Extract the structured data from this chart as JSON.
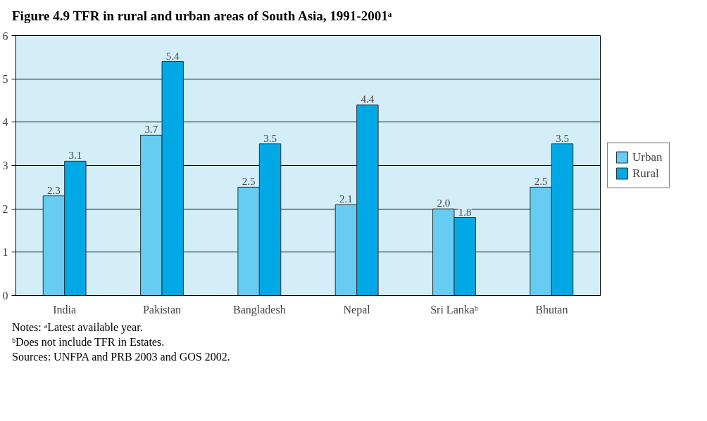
{
  "chart_data": {
    "type": "bar",
    "title": "Figure 4.9    TFR in rural and urban areas of South Asia, 1991-2001ᵃ",
    "categories": [
      "India",
      "Pakistan",
      "Bangladesh",
      "Nepal",
      "Sri Lankaᵇ",
      "Bhutan"
    ],
    "series": [
      {
        "name": "Urban",
        "color": "#66ccf2",
        "values": [
          2.3,
          3.7,
          2.5,
          2.1,
          2.0,
          2.5
        ],
        "value_labels": [
          "2.3",
          "3.7",
          "2.5",
          "2.1",
          "2.0",
          "2.5"
        ]
      },
      {
        "name": "Rural",
        "color": "#00a8e6",
        "values": [
          3.1,
          5.4,
          3.5,
          4.4,
          1.8,
          3.5
        ],
        "value_labels": [
          "3.1",
          "5.4",
          "3.5",
          "4.4",
          "1.8",
          "3.5"
        ]
      }
    ],
    "ylim": [
      0,
      6
    ],
    "yticks": [
      0,
      1,
      2,
      3,
      4,
      5,
      6
    ],
    "grid": "y",
    "legend": "right",
    "annotations": [
      "Notes:  ᵃLatest available year.",
      "ᵇDoes not include TFR in Estates.",
      "Sources:  UNFPA and PRB 2003 and GOS 2002."
    ]
  }
}
